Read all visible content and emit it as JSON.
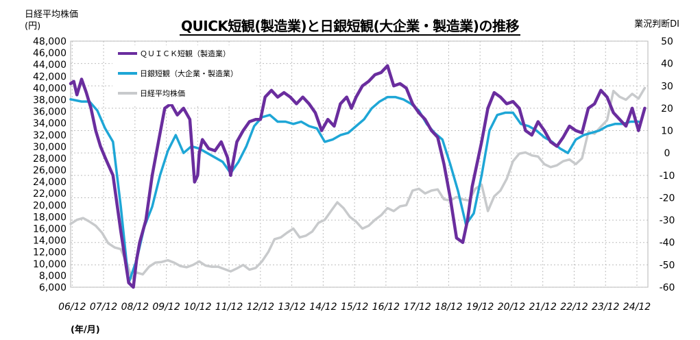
{
  "chart_data": {
    "type": "line",
    "title": "QUICK短観(製造業)と日銀短観(大企業・製造業)の推移",
    "ylabel_left_line1": "日経平均株価",
    "ylabel_left_line2": "(円)",
    "ylabel_right": "業況判断DI",
    "xlabel": "(年/月)",
    "y_left_ticks": [
      "6,000",
      "8,000",
      "10,000",
      "12,000",
      "14,000",
      "16,000",
      "18,000",
      "20,000",
      "22,000",
      "24,000",
      "26,000",
      "28,000",
      "30,000",
      "32,000",
      "34,000",
      "36,000",
      "38,000",
      "40,000",
      "42,000",
      "44,000",
      "46,000",
      "48,000"
    ],
    "y_right_ticks": [
      "-60",
      "-50",
      "-40",
      "-30",
      "-20",
      "-10",
      "0",
      "10",
      "20",
      "30",
      "40",
      "50"
    ],
    "ylim_left": [
      6000,
      48000
    ],
    "ylim_right": [
      -60,
      50
    ],
    "x_tick_labels": [
      "06/12",
      "07/12",
      "08/12",
      "09/12",
      "10/12",
      "11/12",
      "12/12",
      "13/12",
      "14/12",
      "15/12",
      "16/12",
      "17/12",
      "18/12",
      "19/12",
      "20/12",
      "21/12",
      "22/12",
      "23/12",
      "24/12"
    ],
    "x_range": [
      2006.9,
      2025.3
    ],
    "grid": true,
    "legend_position": "top-left",
    "series": [
      {
        "name": "ＱＵＩＣＫ短観（製造業）",
        "axis": "right",
        "color": "#6a2d9e",
        "x": [
          2006.9,
          2007.0,
          2007.1,
          2007.25,
          2007.4,
          2007.55,
          2007.7,
          2007.85,
          2008.0,
          2008.25,
          2008.5,
          2008.75,
          2008.9,
          2009.0,
          2009.1,
          2009.3,
          2009.5,
          2009.7,
          2009.9,
          2010.1,
          2010.3,
          2010.5,
          2010.7,
          2010.85,
          2010.95,
          2011.0,
          2011.1,
          2011.3,
          2011.5,
          2011.7,
          2011.9,
          2012.0,
          2012.2,
          2012.4,
          2012.6,
          2012.8,
          2012.95,
          2013.1,
          2013.3,
          2013.5,
          2013.7,
          2013.9,
          2014.1,
          2014.3,
          2014.5,
          2014.7,
          2014.9,
          2015.1,
          2015.3,
          2015.5,
          2015.7,
          2015.85,
          2016.0,
          2016.2,
          2016.4,
          2016.6,
          2016.8,
          2017.0,
          2017.2,
          2017.4,
          2017.6,
          2017.8,
          2018.0,
          2018.2,
          2018.4,
          2018.6,
          2018.8,
          2019.0,
          2019.2,
          2019.4,
          2019.55,
          2019.7,
          2019.85,
          2020.0,
          2020.2,
          2020.4,
          2020.6,
          2020.8,
          2021.0,
          2021.2,
          2021.4,
          2021.6,
          2021.8,
          2022.0,
          2022.2,
          2022.4,
          2022.6,
          2022.8,
          2023.0,
          2023.2,
          2023.4,
          2023.6,
          2023.8,
          2024.0,
          2024.2,
          2024.4,
          2024.6,
          2024.8,
          2025.0,
          2025.2
        ],
        "y": [
          31,
          32,
          26,
          33,
          27,
          20,
          10,
          3,
          -2,
          -10,
          -35,
          -58,
          -60,
          -48,
          -40,
          -30,
          -10,
          5,
          20,
          22,
          17,
          20,
          15,
          -13,
          -10,
          0,
          6,
          2,
          1,
          5,
          -2,
          -10,
          5,
          10,
          14,
          15,
          15,
          25,
          28,
          25,
          27,
          25,
          22,
          25,
          22,
          18,
          10,
          15,
          12,
          22,
          25,
          20,
          25,
          30,
          32,
          35,
          36,
          39,
          30,
          31,
          29,
          22,
          18,
          15,
          10,
          7,
          -5,
          -20,
          -38,
          -40,
          -30,
          -15,
          -5,
          5,
          20,
          27,
          25,
          22,
          23,
          20,
          10,
          8,
          14,
          10,
          5,
          3,
          7,
          12,
          10,
          9,
          20,
          22,
          28,
          25,
          18,
          15,
          12,
          20,
          10,
          20
        ],
        "y_display_series": "QUICK"
      },
      {
        "name": "日銀短観（大企業・製造業）",
        "axis": "right",
        "color": "#1ea6d6",
        "x": [
          2006.9,
          2007.25,
          2007.5,
          2007.75,
          2008.0,
          2008.25,
          2008.5,
          2008.75,
          2009.0,
          2009.25,
          2009.5,
          2009.75,
          2010.0,
          2010.25,
          2010.5,
          2010.75,
          2011.0,
          2011.25,
          2011.5,
          2011.75,
          2012.0,
          2012.25,
          2012.5,
          2012.75,
          2013.0,
          2013.25,
          2013.5,
          2013.75,
          2014.0,
          2014.25,
          2014.5,
          2014.75,
          2015.0,
          2015.25,
          2015.5,
          2015.75,
          2016.0,
          2016.25,
          2016.5,
          2016.75,
          2017.0,
          2017.25,
          2017.5,
          2017.75,
          2018.0,
          2018.25,
          2018.5,
          2018.75,
          2019.0,
          2019.25,
          2019.5,
          2019.75,
          2020.0,
          2020.25,
          2020.5,
          2020.75,
          2021.0,
          2021.25,
          2021.5,
          2021.75,
          2022.0,
          2022.25,
          2022.5,
          2022.75,
          2023.0,
          2023.25,
          2023.5,
          2023.75,
          2024.0,
          2024.25,
          2024.5,
          2024.75,
          2025.0
        ],
        "y": [
          24,
          23,
          23,
          19,
          11,
          5,
          -24,
          -58,
          -48,
          -33,
          -24,
          -10,
          1,
          8,
          0,
          3,
          2,
          0,
          -2,
          -4,
          -9,
          -4,
          3,
          12,
          16,
          17,
          14,
          14,
          13,
          14,
          12,
          11,
          5,
          6,
          8,
          9,
          12,
          15,
          20,
          23,
          25,
          25,
          24,
          22,
          19,
          13,
          9,
          6,
          -5,
          -17,
          -32,
          -27,
          -10,
          10,
          17,
          18,
          18,
          13,
          12,
          10,
          7,
          5,
          2,
          0,
          6,
          8,
          9,
          10,
          12,
          13,
          13,
          14,
          14
        ]
      },
      {
        "name": "日経平均株価",
        "axis": "left",
        "color": "#c8cacc",
        "x": [
          2006.9,
          2007.1,
          2007.3,
          2007.5,
          2007.7,
          2007.9,
          2008.1,
          2008.3,
          2008.5,
          2008.7,
          2008.85,
          2009.0,
          2009.2,
          2009.4,
          2009.6,
          2009.8,
          2010.0,
          2010.2,
          2010.4,
          2010.6,
          2010.8,
          2011.0,
          2011.2,
          2011.4,
          2011.6,
          2011.8,
          2012.0,
          2012.2,
          2012.4,
          2012.6,
          2012.8,
          2013.0,
          2013.2,
          2013.4,
          2013.6,
          2013.8,
          2014.0,
          2014.2,
          2014.4,
          2014.6,
          2014.8,
          2015.0,
          2015.2,
          2015.4,
          2015.6,
          2015.8,
          2016.0,
          2016.2,
          2016.4,
          2016.6,
          2016.8,
          2017.0,
          2017.2,
          2017.4,
          2017.6,
          2017.8,
          2018.0,
          2018.2,
          2018.4,
          2018.6,
          2018.8,
          2019.0,
          2019.2,
          2019.4,
          2019.6,
          2019.8,
          2020.0,
          2020.2,
          2020.4,
          2020.6,
          2020.8,
          2021.0,
          2021.2,
          2021.4,
          2021.6,
          2021.8,
          2022.0,
          2022.2,
          2022.4,
          2022.6,
          2022.8,
          2023.0,
          2023.2,
          2023.4,
          2023.6,
          2023.8,
          2024.0,
          2024.2,
          2024.4,
          2024.6,
          2024.8,
          2025.0,
          2025.2
        ],
        "y": [
          16800,
          17500,
          17800,
          17200,
          16500,
          15300,
          13500,
          12800,
          12500,
          10000,
          7500,
          8500,
          8200,
          9500,
          10200,
          10300,
          10600,
          10200,
          9600,
          9400,
          9800,
          10400,
          9700,
          9500,
          9500,
          9100,
          8700,
          9200,
          9800,
          9000,
          9300,
          10400,
          12000,
          14200,
          14500,
          15300,
          16000,
          14500,
          14800,
          15500,
          17000,
          17500,
          19000,
          20500,
          19500,
          18000,
          17200,
          16000,
          16500,
          17500,
          18300,
          19500,
          19000,
          19800,
          20000,
          22500,
          22800,
          22000,
          22500,
          22700,
          21000,
          20800,
          21400,
          21000,
          20800,
          22800,
          23500,
          19000,
          21500,
          22500,
          24500,
          27500,
          28800,
          29000,
          28500,
          28300,
          27000,
          26500,
          26800,
          27500,
          27800,
          27000,
          28000,
          32500,
          32200,
          33400,
          34500,
          39500,
          38500,
          38000,
          39000,
          38200,
          40000
        ]
      }
    ]
  }
}
